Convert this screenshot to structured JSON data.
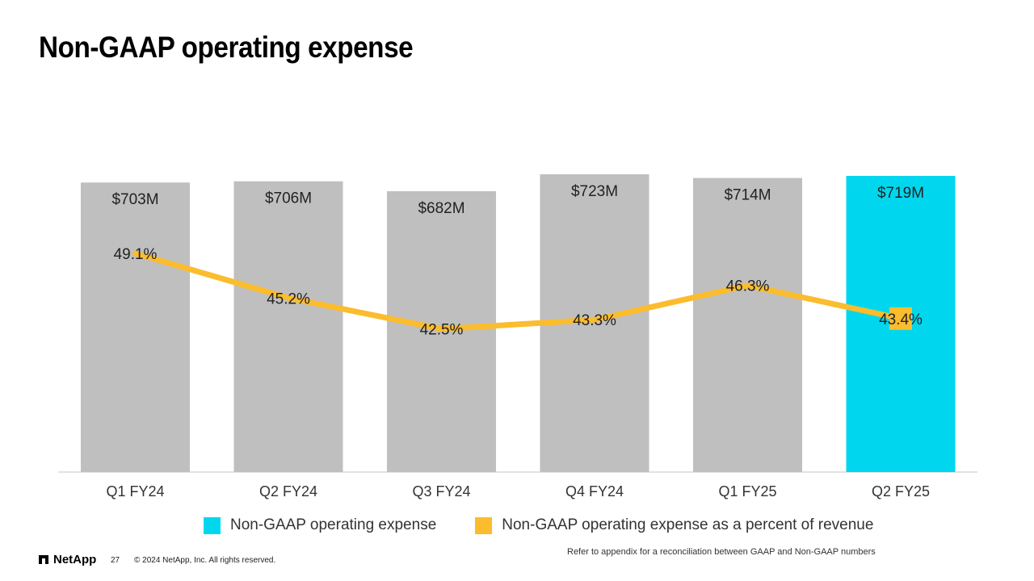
{
  "slide": {
    "title": "Non-GAAP operating expense",
    "page_number": "27",
    "copyright": "© 2024 NetApp, Inc. All rights reserved.",
    "logo_text": "NetApp",
    "note": "Refer to appendix for a reconciliation between GAAP and Non-GAAP numbers"
  },
  "colors": {
    "bar_default": "#bfbfbf",
    "bar_highlight": "#00d7ef",
    "line": "#fbbc2d",
    "axis": "#d9d9d9"
  },
  "chart_data": {
    "type": "bar",
    "title": "Non-GAAP operating expense",
    "categories": [
      "Q1 FY24",
      "Q2 FY24",
      "Q3 FY24",
      "Q4 FY24",
      "Q1 FY25",
      "Q2 FY25"
    ],
    "series": [
      {
        "name": "Non-GAAP operating expense",
        "type": "bar",
        "values": [
          703,
          706,
          682,
          723,
          714,
          719
        ],
        "labels": [
          "$703M",
          "$706M",
          "$682M",
          "$723M",
          "$714M",
          "$719M"
        ],
        "highlight_index": 5
      },
      {
        "name": "Non-GAAP operating expense as a percent of revenue",
        "type": "line",
        "values": [
          49.1,
          45.2,
          42.5,
          43.3,
          46.3,
          43.4
        ],
        "labels": [
          "49.1%",
          "45.2%",
          "42.5%",
          "43.3%",
          "46.3%",
          "43.4%"
        ]
      }
    ],
    "bar_ylim": [
      0,
      723
    ],
    "line_ylim": [
      30,
      56
    ],
    "legend_position": "bottom"
  }
}
